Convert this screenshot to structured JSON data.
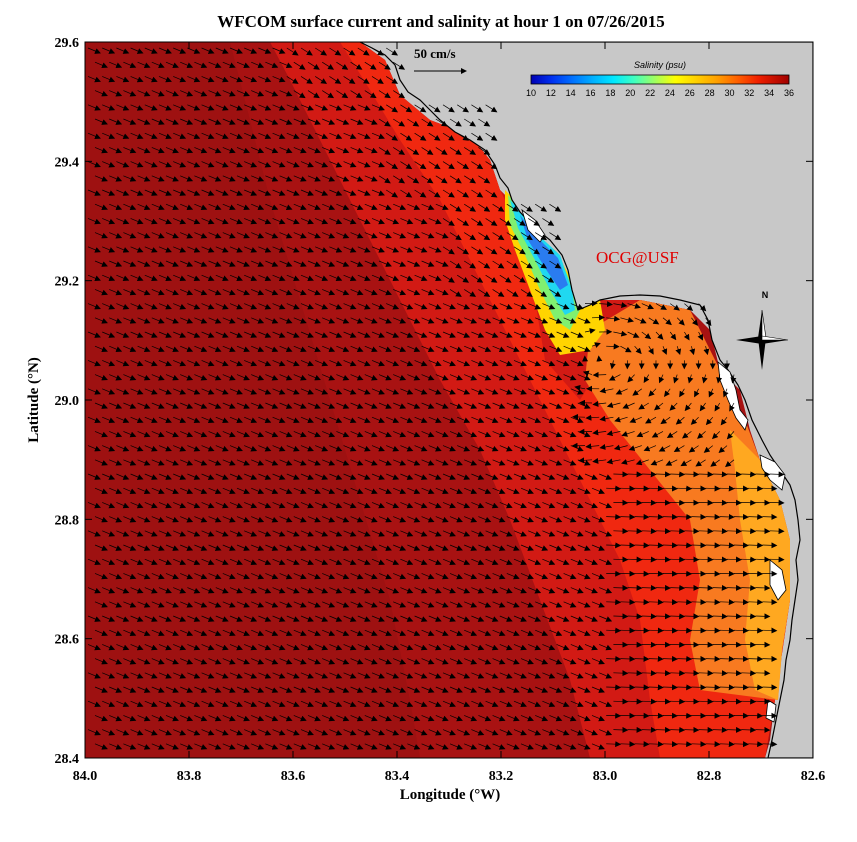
{
  "title": "WFCOM surface current and salinity at hour 1 on 07/26/2015",
  "xlabel": "Longitude (°W)",
  "ylabel": "Latitude (°N)",
  "credit": "OCG@USF",
  "scale_label": "50 cm/s",
  "north_label": "N",
  "colorbar": {
    "title": "Salinity (psu)",
    "ticks": [
      "10",
      "12",
      "14",
      "16",
      "18",
      "20",
      "22",
      "24",
      "26",
      "28",
      "30",
      "32",
      "34",
      "36"
    ],
    "colors": [
      "#0000b4",
      "#0030f0",
      "#0070ff",
      "#00a8ff",
      "#00e0ff",
      "#30ffd0",
      "#80ff80",
      "#c0ff40",
      "#ffff00",
      "#ffd000",
      "#ffa000",
      "#ff7000",
      "#ff3000",
      "#e00000",
      "#b40000"
    ]
  },
  "chart_data": {
    "type": "map",
    "xlim": [
      84.0,
      82.6
    ],
    "ylim": [
      28.4,
      29.6
    ],
    "xticks": [
      "84.0",
      "83.8",
      "83.6",
      "83.4",
      "83.2",
      "83.0",
      "82.8",
      "82.6"
    ],
    "yticks": [
      "28.4",
      "28.6",
      "28.8",
      "29.0",
      "29.2",
      "29.4",
      "29.6"
    ],
    "colors": {
      "land": "#c8c8c8",
      "deep_salinity": "#a01010",
      "mid_salinity": "#d81818",
      "nearshore_salinity": "#f03010",
      "coastal_orange": "#f88020"
    }
  }
}
